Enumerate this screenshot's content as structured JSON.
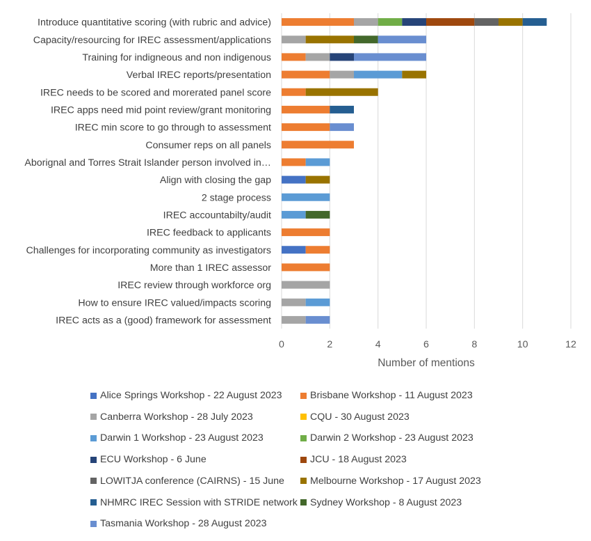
{
  "chart_data": {
    "type": "bar",
    "orientation": "horizontal",
    "stacked": true,
    "title": "",
    "xlabel": "Number of mentions",
    "ylabel": "",
    "xlim": [
      0,
      12
    ],
    "xticks": [
      0,
      2,
      4,
      6,
      8,
      10,
      12
    ],
    "grid": true,
    "legend_position": "bottom",
    "categories": [
      "Introduce quantitative scoring (with rubric and advice)",
      "Capacity/resourcing  for IREC assessment/applications",
      "Training for indigneous and non indigenous",
      "Verbal IREC reports/presentation",
      "IREC needs to be scored and morerated panel score",
      "IREC apps need mid point review/grant monitoring",
      "IREC min score to go through to assessment",
      "Consumer reps on all panels",
      "Aborignal and Torres Strait Islander person involved in…",
      "Align with closing the gap",
      "2 stage process",
      "IREC accountabilty/audit",
      "IREC feedback to applicants",
      "Challenges for incorporating community as investigators",
      "More than 1 IREC assessor",
      "IREC review through workforce org",
      "How to ensure IREC valued/impacts scoring",
      "IREC acts as a (good) framework for assessment"
    ],
    "series": [
      {
        "name": "Alice Springs Workshop - 22 August 2023",
        "color": "#4472C4",
        "values": [
          0,
          0,
          0,
          0,
          0,
          0,
          0,
          0,
          0,
          1,
          0,
          0,
          0,
          1,
          0,
          0,
          0,
          0
        ]
      },
      {
        "name": "Brisbane Workshop - 11 August 2023",
        "color": "#ED7D31",
        "values": [
          3,
          0,
          1,
          2,
          1,
          2,
          2,
          3,
          1,
          0,
          0,
          0,
          2,
          1,
          2,
          0,
          0,
          0
        ]
      },
      {
        "name": "Canberra Workshop - 28 July 2023",
        "color": "#A5A5A5",
        "values": [
          1,
          1,
          1,
          1,
          0,
          0,
          0,
          0,
          0,
          0,
          0,
          0,
          0,
          0,
          0,
          2,
          1,
          1
        ]
      },
      {
        "name": "CQU - 30 August 2023",
        "color": "#FFC000",
        "values": [
          0,
          0,
          0,
          0,
          0,
          0,
          0,
          0,
          0,
          0,
          0,
          0,
          0,
          0,
          0,
          0,
          0,
          0
        ]
      },
      {
        "name": "Darwin 1 Workshop - 23 August 2023",
        "color": "#5B9BD5",
        "values": [
          0,
          0,
          0,
          2,
          0,
          0,
          0,
          0,
          1,
          0,
          2,
          1,
          0,
          0,
          0,
          0,
          1,
          0
        ]
      },
      {
        "name": "Darwin 2 Workshop - 23 August 2023",
        "color": "#70AD47",
        "values": [
          1,
          0,
          0,
          0,
          0,
          0,
          0,
          0,
          0,
          0,
          0,
          0,
          0,
          0,
          0,
          0,
          0,
          0
        ]
      },
      {
        "name": "ECU Workshop - 6 June",
        "color": "#264478",
        "values": [
          1,
          0,
          1,
          0,
          0,
          0,
          0,
          0,
          0,
          0,
          0,
          0,
          0,
          0,
          0,
          0,
          0,
          0
        ]
      },
      {
        "name": "JCU - 18 August 2023",
        "color": "#9E480E",
        "values": [
          2,
          0,
          0,
          0,
          0,
          0,
          0,
          0,
          0,
          0,
          0,
          0,
          0,
          0,
          0,
          0,
          0,
          0
        ]
      },
      {
        "name": "LOWITJA conference (CAIRNS) - 15 June",
        "color": "#636363",
        "values": [
          1,
          0,
          0,
          0,
          0,
          0,
          0,
          0,
          0,
          0,
          0,
          0,
          0,
          0,
          0,
          0,
          0,
          0
        ]
      },
      {
        "name": "Melbourne Workshop - 17 August 2023",
        "color": "#997300",
        "values": [
          1,
          2,
          0,
          1,
          3,
          0,
          0,
          0,
          0,
          1,
          0,
          0,
          0,
          0,
          0,
          0,
          0,
          0
        ]
      },
      {
        "name": "NHMRC IREC Session with STRIDE network",
        "color": "#255E91",
        "values": [
          1,
          0,
          0,
          0,
          0,
          1,
          0,
          0,
          0,
          0,
          0,
          0,
          0,
          0,
          0,
          0,
          0,
          0
        ]
      },
      {
        "name": "Sydney Workshop - 8 August 2023",
        "color": "#43682B",
        "values": [
          0,
          1,
          0,
          0,
          0,
          0,
          0,
          0,
          0,
          0,
          0,
          1,
          0,
          0,
          0,
          0,
          0,
          0
        ]
      },
      {
        "name": "Tasmania Workshop - 28 August 2023",
        "color": "#698ED0",
        "values": [
          0,
          2,
          3,
          0,
          0,
          0,
          1,
          0,
          0,
          0,
          0,
          0,
          0,
          0,
          0,
          0,
          0,
          1
        ]
      }
    ]
  }
}
